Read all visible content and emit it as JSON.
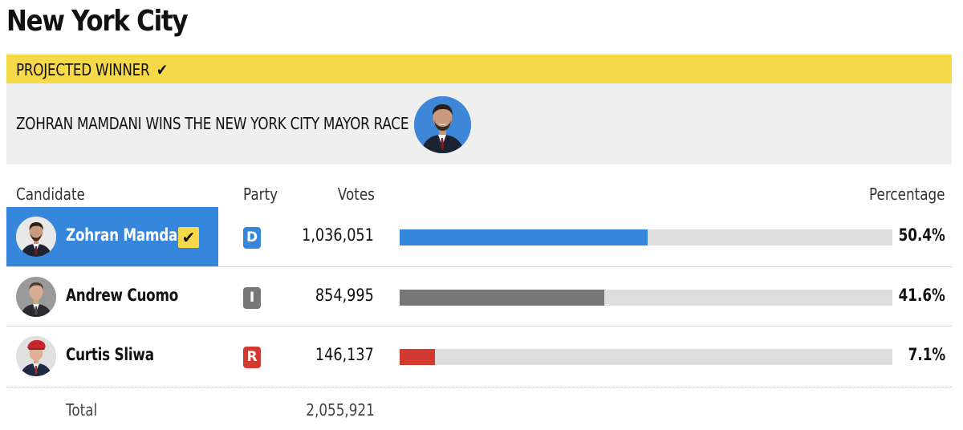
{
  "page": {
    "title": "New York City"
  },
  "banner": {
    "status_label": "PROJECTED WINNER",
    "check_icon": "checkmark-icon",
    "headline": "ZOHRAN MAMDANI WINS THE NEW YORK CITY MAYOR RACE",
    "accent_color": "#f6d949"
  },
  "table": {
    "headers": {
      "candidate": "Candidate",
      "party": "Party",
      "votes": "Votes",
      "percentage": "Percentage"
    },
    "rows": [
      {
        "name": "Zohran Mamdani",
        "party": "D",
        "party_color": "#3686dc",
        "votes": "1,036,051",
        "percentage": "50.4%",
        "share": 0.504,
        "bar_color": "#3686dc",
        "winner": true
      },
      {
        "name": "Andrew Cuomo",
        "party": "I",
        "party_color": "#777777",
        "votes": "854,995",
        "percentage": "41.6%",
        "share": 0.416,
        "bar_color": "#777777",
        "winner": false
      },
      {
        "name": "Curtis Sliwa",
        "party": "R",
        "party_color": "#d03a30",
        "votes": "146,137",
        "percentage": "7.1%",
        "share": 0.071,
        "bar_color": "#d03a30",
        "winner": false
      }
    ],
    "total_label": "Total",
    "total_votes": "2,055,921"
  }
}
